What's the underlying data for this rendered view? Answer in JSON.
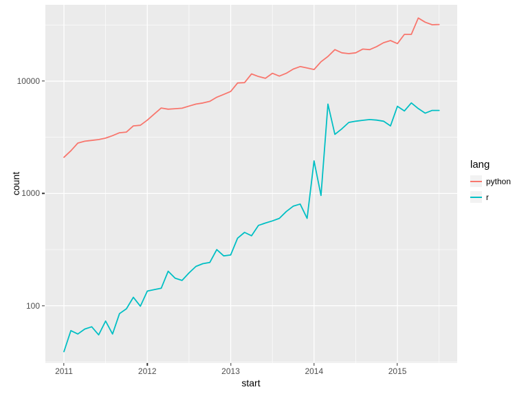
{
  "figure": {
    "x_axis_label": "start",
    "y_axis_label": "count"
  },
  "legend": {
    "title": "lang",
    "entries": [
      {
        "label": "python",
        "color": "#F8766D"
      },
      {
        "label": "r",
        "color": "#00BFC4"
      }
    ]
  },
  "colors": {
    "panel_background": "#EBEBEB",
    "grid_major": "#FFFFFF",
    "grid_minor": "#FFFFFF",
    "tick_label": "#4D4D4D",
    "axis_title": "#000000",
    "legend_key_background": "#F2F2F2"
  },
  "chart_data": {
    "type": "line",
    "title": "",
    "xlabel": "start",
    "ylabel": "count",
    "x_start": "2011-01",
    "x_frequency": "monthly",
    "y_scale": "log10",
    "grid": true,
    "legend_position": "right",
    "x_tick_labels": [
      "2011",
      "2012",
      "2013",
      "2014",
      "2015"
    ],
    "x_tick_months": [
      0,
      12,
      24,
      36,
      48
    ],
    "x_minor_months": [
      6,
      18,
      30,
      42,
      54
    ],
    "x_domain_months": [
      -2.67,
      56.6
    ],
    "y_tick_labels": [
      "100",
      "1000",
      "10000"
    ],
    "y_tick_values": [
      100,
      1000,
      10000
    ],
    "y_minor_values": [
      31.6,
      316,
      3162,
      31623
    ],
    "y_domain_log10": [
      1.49,
      4.68
    ],
    "series": [
      {
        "name": "python",
        "color": "#F8766D",
        "values": [
          2100,
          2400,
          2810,
          2920,
          2970,
          3020,
          3110,
          3270,
          3470,
          3520,
          4000,
          4050,
          4500,
          5100,
          5770,
          5630,
          5690,
          5740,
          6000,
          6250,
          6390,
          6610,
          7200,
          7620,
          8090,
          9640,
          9700,
          11600,
          11000,
          10600,
          11750,
          11100,
          11750,
          12800,
          13500,
          13100,
          12700,
          14900,
          16600,
          19100,
          17900,
          17600,
          17900,
          19300,
          19100,
          20300,
          22000,
          23000,
          21600,
          26100,
          26100,
          36500,
          33500,
          31800,
          32000
        ]
      },
      {
        "name": "r",
        "color": "#00BFC4",
        "values": [
          39,
          60,
          56,
          62,
          65,
          55,
          73,
          56,
          85,
          94,
          119,
          99,
          135,
          139,
          143,
          203,
          176,
          168,
          196,
          224,
          237,
          243,
          316,
          278,
          283,
          400,
          450,
          420,
          520,
          545,
          570,
          600,
          690,
          770,
          805,
          600,
          1950,
          960,
          6250,
          3360,
          3760,
          4290,
          4400,
          4480,
          4550,
          4500,
          4400,
          4000,
          5970,
          5430,
          6400,
          5700,
          5190,
          5490,
          5490
        ]
      }
    ]
  }
}
